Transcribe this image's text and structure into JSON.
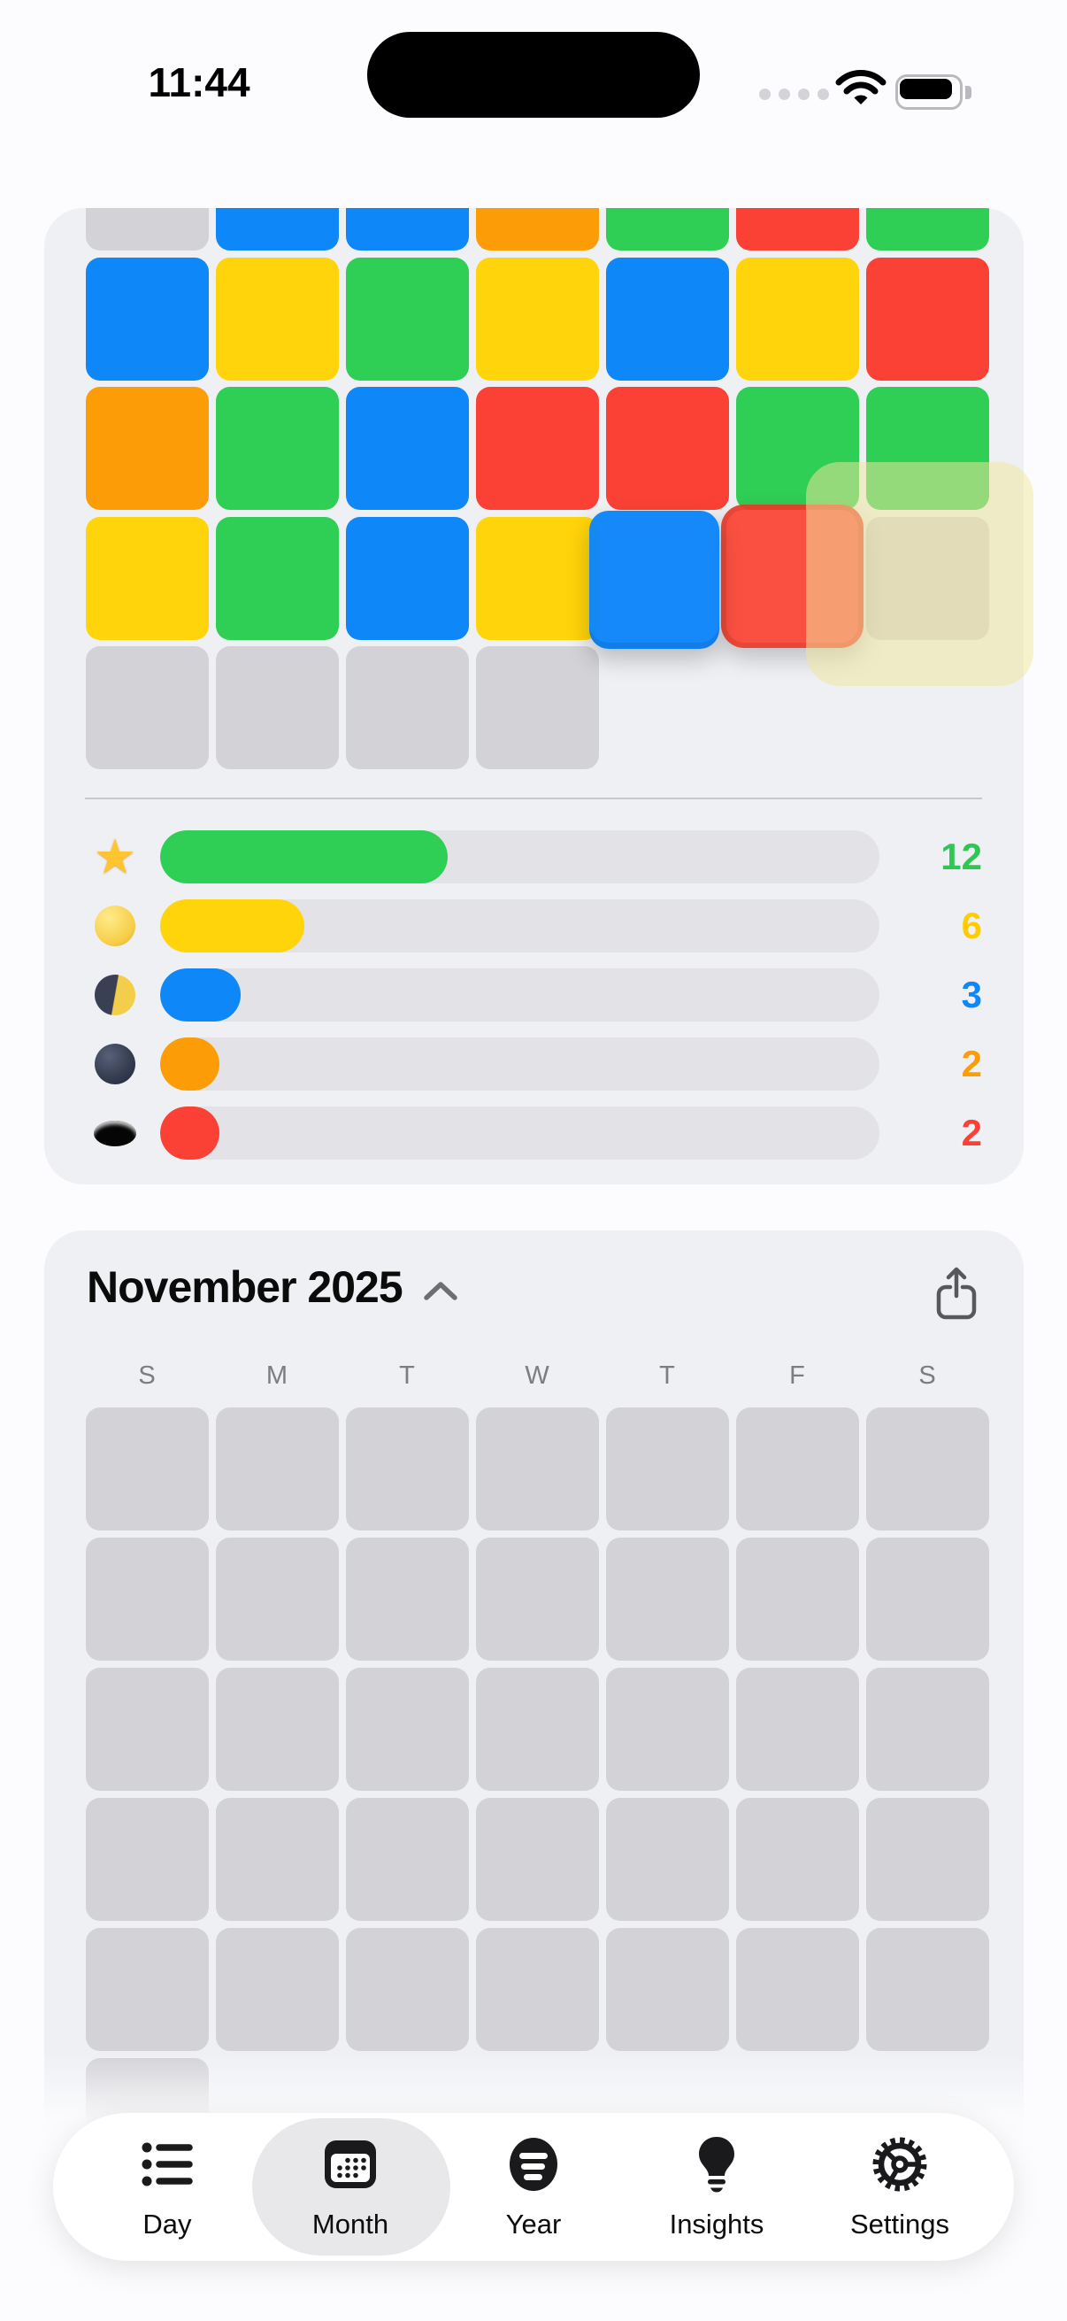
{
  "status_bar": {
    "time": "11:44",
    "icons": [
      "cellular-dots",
      "wifi",
      "battery-full"
    ]
  },
  "mood_card": {
    "grid": {
      "columns": 7,
      "rows": [
        [
          "gray",
          "blue",
          "blue",
          "orange",
          "green",
          "red",
          "green"
        ],
        [
          "blue",
          "yellow",
          "green",
          "yellow",
          "blue",
          "yellow",
          "red"
        ],
        [
          "orange",
          "green",
          "blue",
          "red",
          "red",
          "green",
          "green"
        ],
        [
          "yellow",
          "green",
          "blue",
          "yellow",
          null,
          null,
          "gray"
        ],
        [
          "gray",
          "gray",
          "gray",
          "gray",
          null,
          null,
          null
        ]
      ]
    },
    "drag_state": {
      "dragged_squares": [
        "blue",
        "red"
      ],
      "drop_highlight_color": "#F2E69E"
    },
    "stats": [
      {
        "icon": "star",
        "value": "12",
        "color_key": "green",
        "fraction": 0.4
      },
      {
        "icon": "full-moon",
        "value": "6",
        "color_key": "yellow",
        "fraction": 0.2
      },
      {
        "icon": "first-quarter-moon",
        "value": "3",
        "color_key": "blue",
        "fraction": 0.112
      },
      {
        "icon": "new-moon",
        "value": "2",
        "color_key": "orange",
        "fraction": 0.082
      },
      {
        "icon": "hole",
        "value": "2",
        "color_key": "red",
        "fraction": 0.082
      }
    ]
  },
  "calendar_card": {
    "title": "November 2025",
    "collapse_icon": "chevron-up",
    "share_icon": "share",
    "weekdays": [
      "S",
      "M",
      "T",
      "W",
      "T",
      "F",
      "S"
    ],
    "grid": {
      "full_rows": 5,
      "columns": 7,
      "extra_cells": 1,
      "cell_state": "empty"
    }
  },
  "tab_bar": {
    "active_tab": "Month",
    "items": [
      {
        "icon": "list-bullet",
        "label": "Day",
        "active": false
      },
      {
        "icon": "calendar",
        "label": "Month",
        "active": true
      },
      {
        "icon": "year-circle",
        "label": "Year",
        "active": false
      },
      {
        "icon": "lightbulb",
        "label": "Insights",
        "active": false
      },
      {
        "icon": "gear",
        "label": "Settings",
        "active": false
      }
    ]
  },
  "colors": {
    "blue": "#0E87F9",
    "yellow": "#FFD40A",
    "green": "#2FCE55",
    "red": "#FB4136",
    "orange": "#FC9D07",
    "empty_cell": "#D2D2D7",
    "card_background": "#EEF0F4",
    "track": "#E2E2E7",
    "tab_active_pill": "#E8E8EA"
  }
}
